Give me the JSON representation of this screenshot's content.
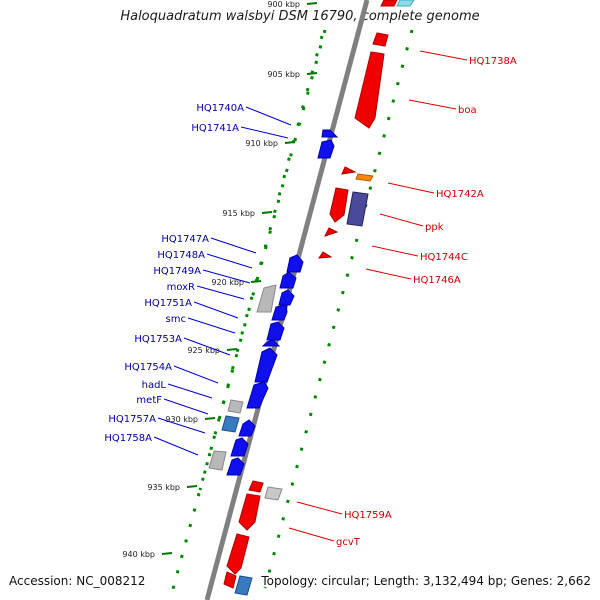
{
  "title": "Haloquadratum walsbyi DSM 16790, complete genome",
  "footer": {
    "accession": "Accession: NC_008212",
    "summary": "Topology: circular; Length: 3,132,494 bp; Genes: 2,662"
  },
  "colors": {
    "forward_gene": "#f00000",
    "reverse_gene": "#0000ee",
    "forward_label": "#cc0000",
    "reverse_label": "#0000aa",
    "scale_tick": "#007700",
    "backbone": "#808080"
  },
  "scale_ticks": [
    {
      "label": "900 kbp",
      "kbp": 900
    },
    {
      "label": "905 kbp",
      "kbp": 905
    },
    {
      "label": "910 kbp",
      "kbp": 910
    },
    {
      "label": "915 kbp",
      "kbp": 915
    },
    {
      "label": "920 kbp",
      "kbp": 920
    },
    {
      "label": "925 kbp",
      "kbp": 925
    },
    {
      "label": "930 kbp",
      "kbp": 930
    },
    {
      "label": "935 kbp",
      "kbp": 935
    },
    {
      "label": "940 kbp",
      "kbp": 940
    }
  ],
  "reverse_genes": [
    "HQ1740A",
    "HQ1741A",
    "HQ1747A",
    "HQ1748A",
    "HQ1749A",
    "moxR",
    "HQ1751A",
    "smc",
    "HQ1753A",
    "HQ1754A",
    "hadL",
    "metF",
    "HQ1757A",
    "HQ1758A"
  ],
  "forward_genes": [
    "HQ1738A",
    "boa",
    "HQ1742A",
    "ppk",
    "HQ1744C",
    "HQ1746A",
    "HQ1759A",
    "gcvT"
  ]
}
